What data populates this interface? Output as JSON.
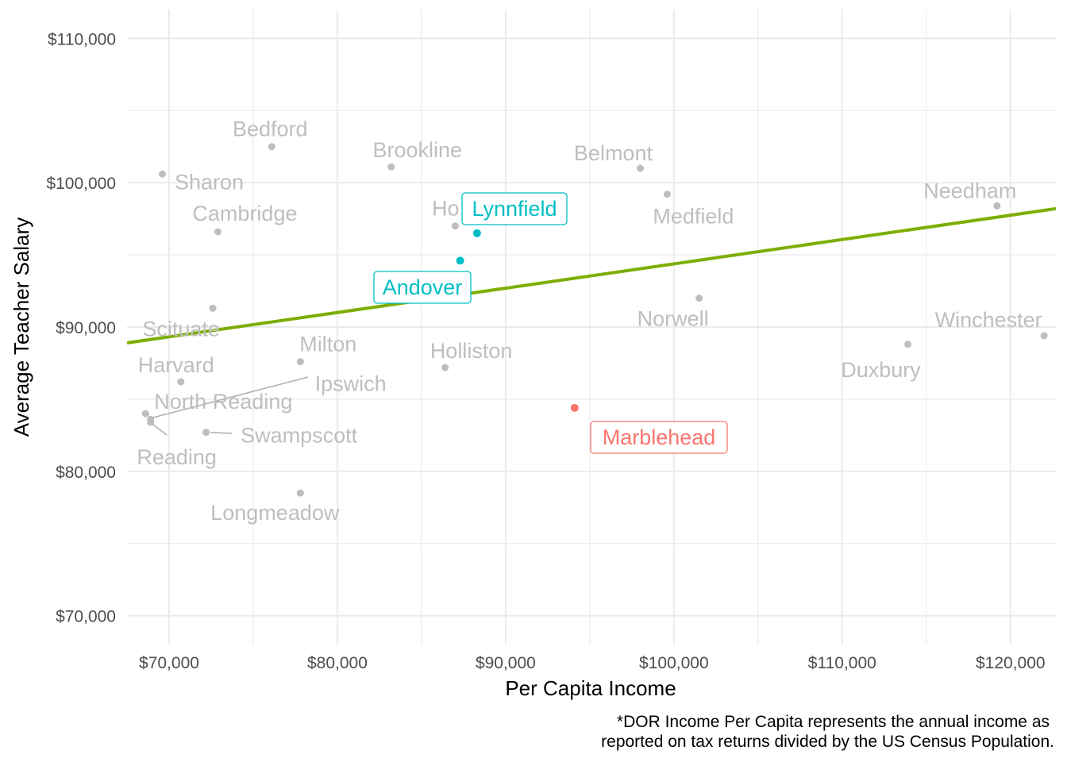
{
  "chart_data": {
    "type": "scatter",
    "xlabel": "Per Capita Income",
    "ylabel": "Average Teacher Salary",
    "xlim": [
      67500,
      122700
    ],
    "ylim": [
      68000,
      112000
    ],
    "x_ticks": [
      70000,
      80000,
      90000,
      100000,
      110000,
      120000
    ],
    "x_tick_labels": [
      "$70,000",
      "$80,000",
      "$90,000",
      "$100,000",
      "$110,000",
      "$120,000"
    ],
    "y_ticks": [
      70000,
      80000,
      90000,
      100000,
      110000
    ],
    "y_tick_labels": [
      "$70,000",
      "$80,000",
      "$90,000",
      "$100,000",
      "$110,000"
    ],
    "grid": true,
    "legend": "none",
    "caption_lines": [
      "*DOR Income Per Capita represents the annual income as",
      "reported on tax returns divided by the US Census Population."
    ],
    "colors": {
      "comparison": "#bebebe",
      "marblehead": "#f8766d",
      "highlight": "#00bfc4",
      "trend": "#7cae00",
      "grid": "#ebebeb",
      "tick_text": "#4d4d4d"
    },
    "trend_line": {
      "x": [
        67500,
        122700
      ],
      "y": [
        88900,
        98200
      ]
    },
    "points": [
      {
        "name": "Bedford",
        "x": 76100,
        "y": 102500,
        "group": "comparison"
      },
      {
        "name": "Brookline",
        "x": 83200,
        "y": 101100,
        "group": "comparison"
      },
      {
        "name": "Belmont",
        "x": 98000,
        "y": 101000,
        "group": "comparison"
      },
      {
        "name": "Sharon",
        "x": 69600,
        "y": 100600,
        "group": "comparison"
      },
      {
        "name": "Medfield",
        "x": 99600,
        "y": 99200,
        "group": "comparison"
      },
      {
        "name": "Needham",
        "x": 119200,
        "y": 98400,
        "group": "comparison"
      },
      {
        "name": "Hopkinton",
        "label_shown": "Ho",
        "x": 87000,
        "y": 97000,
        "group": "comparison"
      },
      {
        "name": "Cambridge",
        "x": 72900,
        "y": 96600,
        "group": "comparison"
      },
      {
        "name": "Lynnfield",
        "x": 88300,
        "y": 96500,
        "group": "highlight"
      },
      {
        "name": "Andover",
        "x": 87300,
        "y": 94600,
        "group": "highlight"
      },
      {
        "name": "Norwell",
        "x": 101500,
        "y": 92000,
        "group": "comparison"
      },
      {
        "name": "Scituate",
        "x": 72600,
        "y": 91300,
        "group": "comparison"
      },
      {
        "name": "Winchester",
        "x": 122000,
        "y": 89400,
        "group": "comparison"
      },
      {
        "name": "Duxbury",
        "x": 113900,
        "y": 88800,
        "group": "comparison"
      },
      {
        "name": "Milton",
        "x": 77800,
        "y": 87600,
        "group": "comparison"
      },
      {
        "name": "Holliston",
        "x": 86400,
        "y": 87200,
        "group": "comparison"
      },
      {
        "name": "Harvard",
        "x": 70700,
        "y": 86200,
        "group": "comparison"
      },
      {
        "name": "Ipswich",
        "x": 68900,
        "y": 83600,
        "group": "comparison"
      },
      {
        "name": "Marblehead",
        "x": 94100,
        "y": 84400,
        "group": "marblehead"
      },
      {
        "name": "North Reading",
        "x": 68600,
        "y": 84000,
        "group": "comparison"
      },
      {
        "name": "Reading",
        "x": 68900,
        "y": 83400,
        "group": "comparison"
      },
      {
        "name": "Swampscott",
        "x": 72200,
        "y": 82700,
        "group": "comparison"
      },
      {
        "name": "Longmeadow",
        "x": 77800,
        "y": 78500,
        "group": "comparison"
      }
    ]
  }
}
